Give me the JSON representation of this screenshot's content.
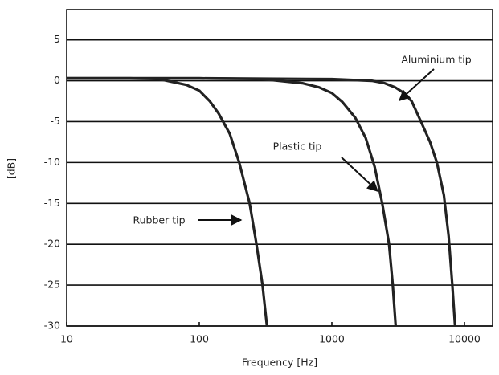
{
  "chart_data": {
    "type": "line",
    "x_label": "Frequency [Hz]",
    "y_label": "[dB]",
    "log_x": true,
    "grid": true,
    "xlim": [
      10,
      16300
    ],
    "xticks": [
      10,
      100,
      1000,
      10000
    ],
    "ylim": [
      -30,
      8.7
    ],
    "yticks": [
      5,
      0,
      -5,
      -10,
      -15,
      -20,
      -25,
      -30
    ],
    "series": [
      {
        "color": "#222222",
        "x": [
          10,
          30,
          50,
          80,
          100,
          120,
          140,
          170,
          200,
          240,
          270,
          300,
          324
        ],
        "values": [
          0.3,
          0.3,
          0.2,
          -0.5,
          -1.2,
          -2.5,
          -4,
          -6.5,
          -10,
          -15,
          -20,
          -25,
          -30
        ]
      },
      {
        "color": "#222222",
        "x": [
          10,
          100,
          300,
          600,
          800,
          1000,
          1200,
          1500,
          1800,
          2100,
          2400,
          2700,
          2880,
          3030
        ],
        "values": [
          0.3,
          0.3,
          0.2,
          -0.3,
          -0.8,
          -1.5,
          -2.6,
          -4.5,
          -7,
          -10.5,
          -15,
          -20,
          -25,
          -30
        ]
      },
      {
        "color": "#222222",
        "x": [
          10,
          100,
          1000,
          2000,
          2500,
          3000,
          3500,
          4000,
          4700,
          5500,
          6200,
          7000,
          7600,
          8100,
          8500
        ],
        "values": [
          0.3,
          0.3,
          0.2,
          0,
          -0.3,
          -0.8,
          -1.5,
          -2.5,
          -5,
          -7.5,
          -10,
          -14,
          -19,
          -25,
          -30
        ]
      }
    ],
    "annotations": [
      {
        "text": "Rubber tip"
      },
      {
        "text": "Plastic tip"
      },
      {
        "text": "Aluminium tip"
      }
    ]
  }
}
